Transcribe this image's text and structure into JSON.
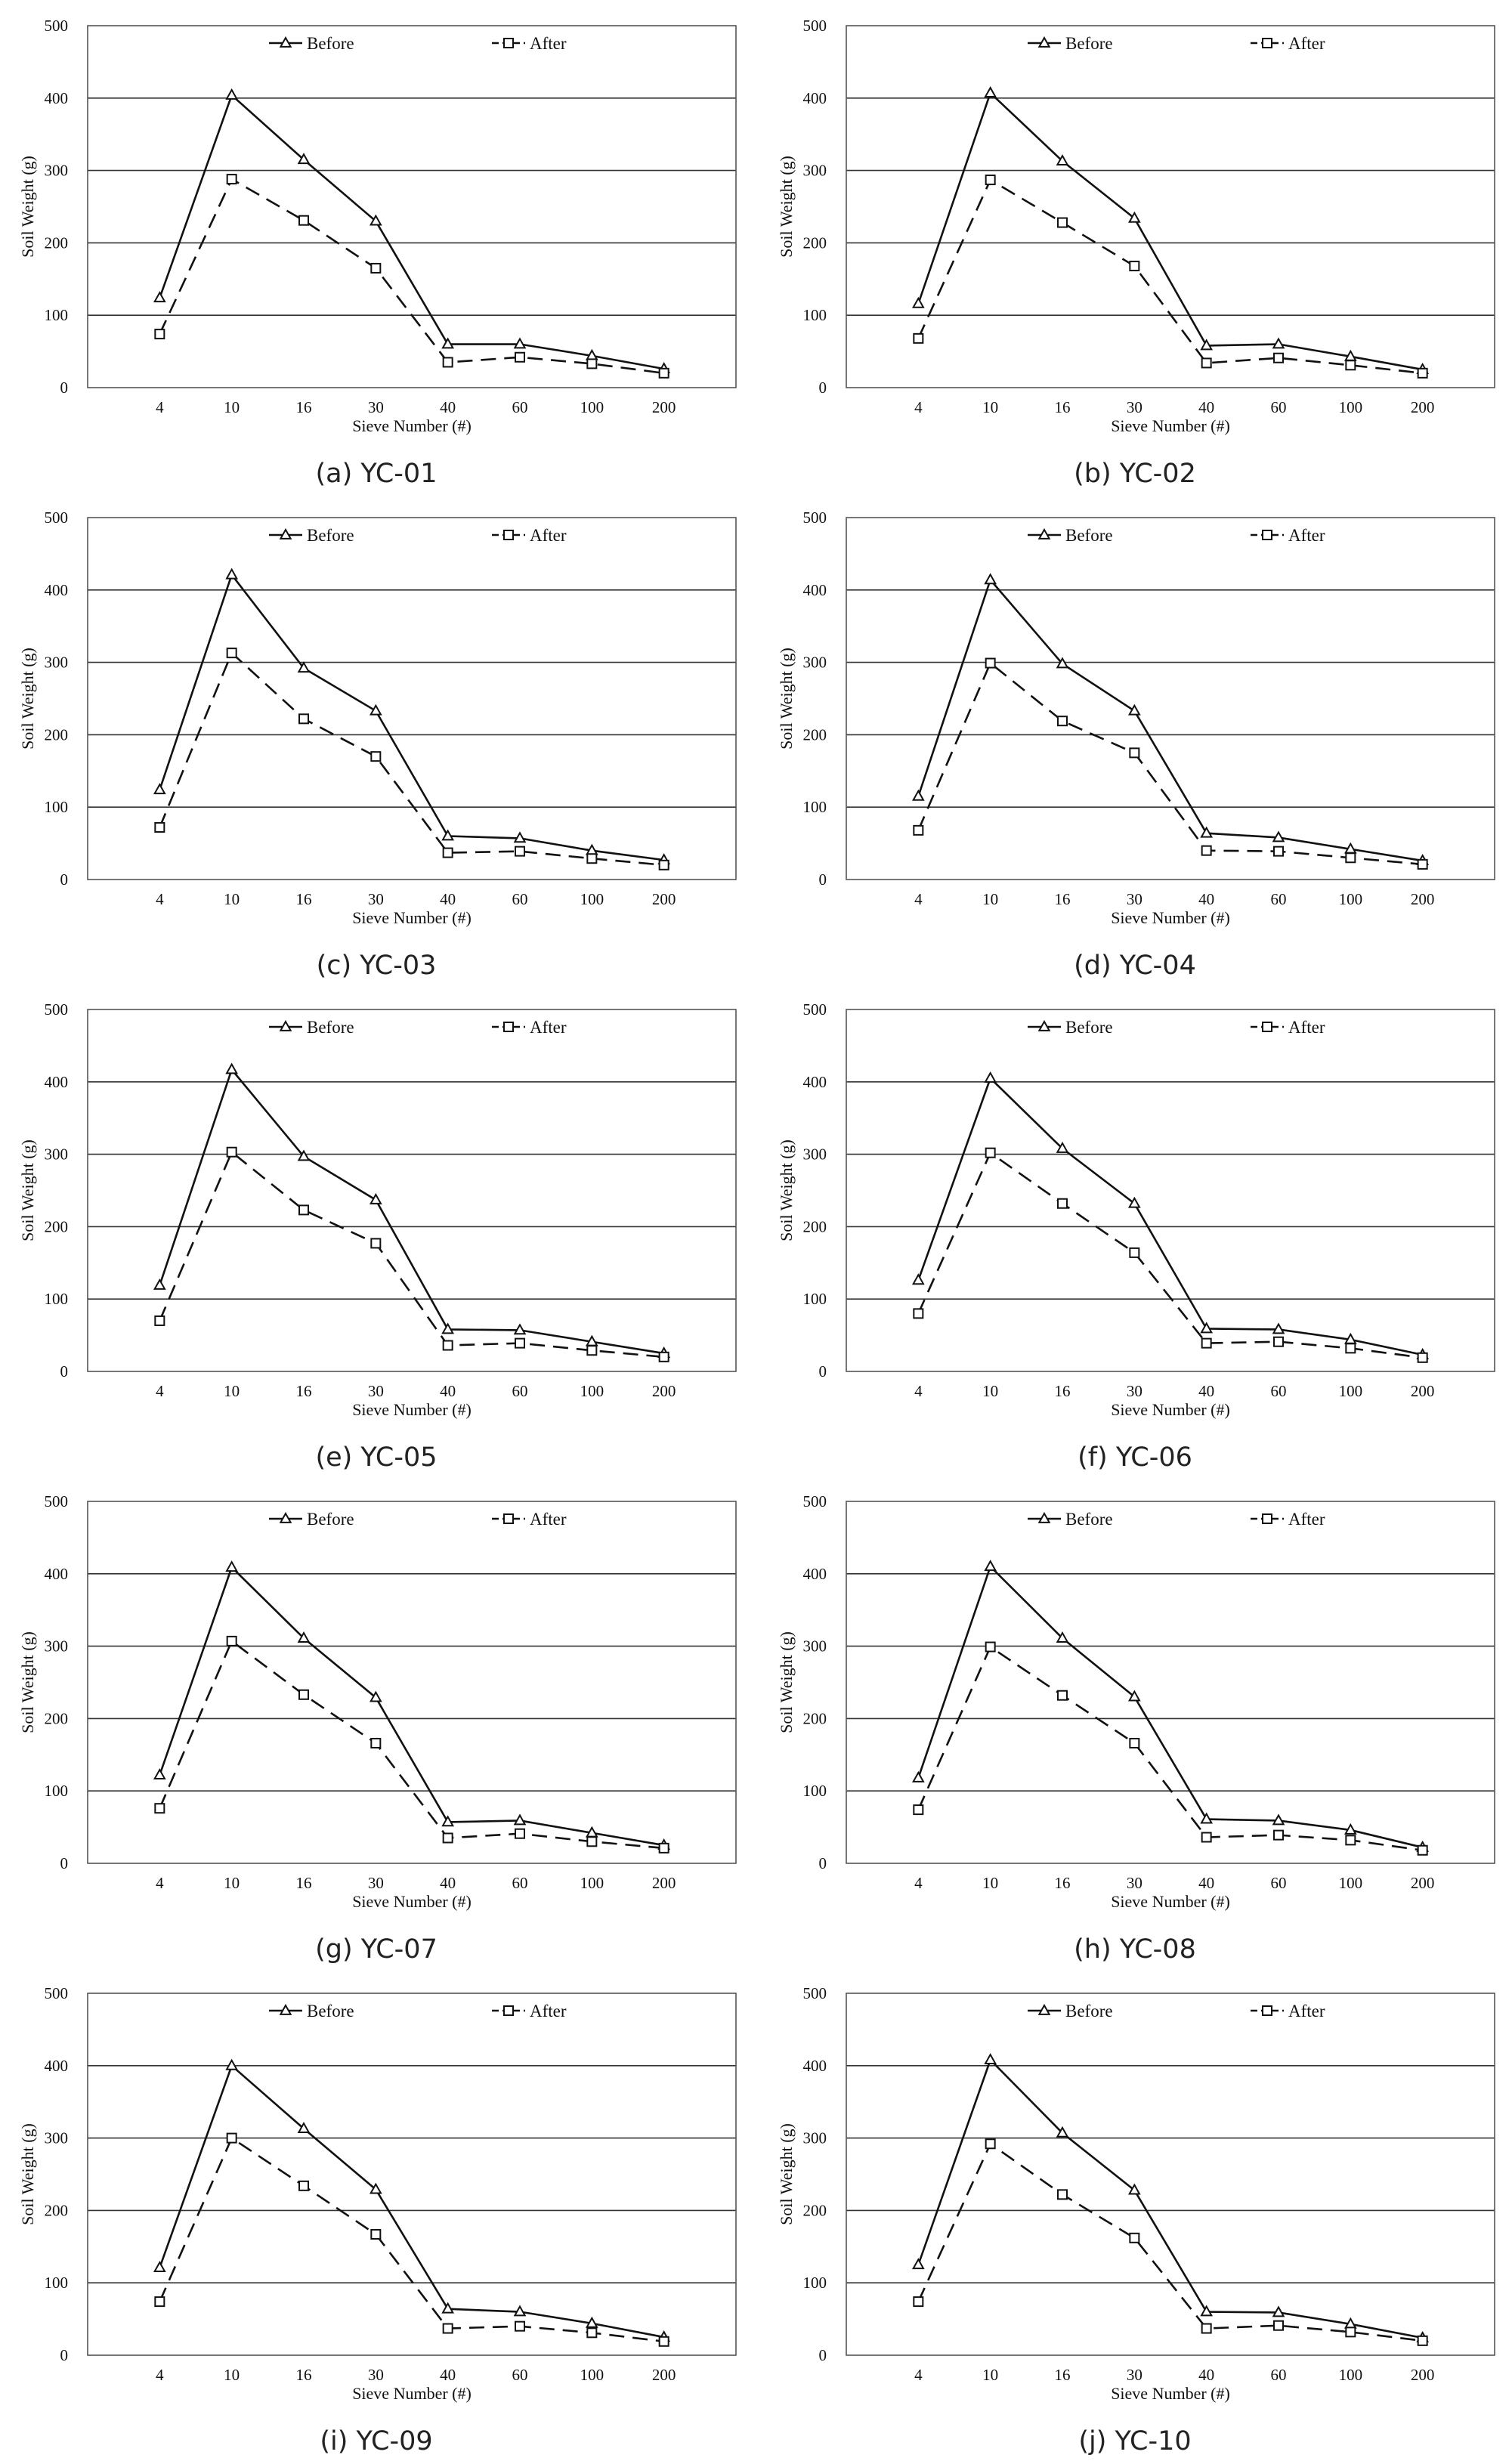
{
  "chart_data": [
    {
      "type": "line",
      "caption": "(a) YC-01",
      "categories": [
        "4",
        "10",
        "16",
        "30",
        "40",
        "60",
        "100",
        "200"
      ],
      "xlabel": "Sieve Number (#)",
      "ylabel": "Soil Weight (g)",
      "ylim": [
        0,
        500
      ],
      "yticks": [
        0,
        100,
        200,
        300,
        400,
        500
      ],
      "grid": true,
      "legend": "top",
      "series": [
        {
          "name": "Before",
          "marker": "triangle",
          "line": "solid",
          "values": [
            124,
            404,
            315,
            230,
            60,
            60,
            44,
            26
          ]
        },
        {
          "name": "After",
          "marker": "square",
          "line": "dashed",
          "values": [
            74,
            288,
            231,
            165,
            35,
            42,
            33,
            20
          ]
        }
      ]
    },
    {
      "type": "line",
      "caption": "(b) YC-02",
      "categories": [
        "4",
        "10",
        "16",
        "30",
        "40",
        "60",
        "100",
        "200"
      ],
      "xlabel": "Sieve Number (#)",
      "ylabel": "Soil Weight (g)",
      "ylim": [
        0,
        500
      ],
      "yticks": [
        0,
        100,
        200,
        300,
        400,
        500
      ],
      "grid": true,
      "legend": "top",
      "series": [
        {
          "name": "Before",
          "marker": "triangle",
          "line": "solid",
          "values": [
            116,
            407,
            313,
            234,
            58,
            60,
            43,
            25
          ]
        },
        {
          "name": "After",
          "marker": "square",
          "line": "dashed",
          "values": [
            68,
            287,
            228,
            168,
            34,
            41,
            31,
            20
          ]
        }
      ]
    },
    {
      "type": "line",
      "caption": "(c) YC-03",
      "categories": [
        "4",
        "10",
        "16",
        "30",
        "40",
        "60",
        "100",
        "200"
      ],
      "xlabel": "Sieve Number (#)",
      "ylabel": "Soil Weight (g)",
      "ylim": [
        0,
        500
      ],
      "yticks": [
        0,
        100,
        200,
        300,
        400,
        500
      ],
      "grid": true,
      "legend": "top",
      "series": [
        {
          "name": "Before",
          "marker": "triangle",
          "line": "solid",
          "values": [
            124,
            421,
            292,
            233,
            60,
            57,
            40,
            27
          ]
        },
        {
          "name": "After",
          "marker": "square",
          "line": "dashed",
          "values": [
            72,
            313,
            222,
            170,
            37,
            39,
            29,
            20
          ]
        }
      ]
    },
    {
      "type": "line",
      "caption": "(d) YC-04",
      "categories": [
        "4",
        "10",
        "16",
        "30",
        "40",
        "60",
        "100",
        "200"
      ],
      "xlabel": "Sieve Number (#)",
      "ylabel": "Soil Weight (g)",
      "ylim": [
        0,
        500
      ],
      "yticks": [
        0,
        100,
        200,
        300,
        400,
        500
      ],
      "grid": true,
      "legend": "top",
      "series": [
        {
          "name": "Before",
          "marker": "triangle",
          "line": "solid",
          "values": [
            115,
            414,
            298,
            233,
            64,
            58,
            42,
            26
          ]
        },
        {
          "name": "After",
          "marker": "square",
          "line": "dashed",
          "values": [
            68,
            299,
            219,
            175,
            40,
            39,
            30,
            21
          ]
        }
      ]
    },
    {
      "type": "line",
      "caption": "(e) YC-05",
      "categories": [
        "4",
        "10",
        "16",
        "30",
        "40",
        "60",
        "100",
        "200"
      ],
      "xlabel": "Sieve Number (#)",
      "ylabel": "Soil Weight (g)",
      "ylim": [
        0,
        500
      ],
      "yticks": [
        0,
        100,
        200,
        300,
        400,
        500
      ],
      "grid": true,
      "legend": "top",
      "series": [
        {
          "name": "Before",
          "marker": "triangle",
          "line": "solid",
          "values": [
            119,
            417,
            297,
            237,
            58,
            57,
            41,
            25
          ]
        },
        {
          "name": "After",
          "marker": "square",
          "line": "dashed",
          "values": [
            70,
            303,
            223,
            177,
            36,
            39,
            29,
            20
          ]
        }
      ]
    },
    {
      "type": "line",
      "caption": "(f) YC-06",
      "categories": [
        "4",
        "10",
        "16",
        "30",
        "40",
        "60",
        "100",
        "200"
      ],
      "xlabel": "Sieve Number (#)",
      "ylabel": "Soil Weight (g)",
      "ylim": [
        0,
        500
      ],
      "yticks": [
        0,
        100,
        200,
        300,
        400,
        500
      ],
      "grid": true,
      "legend": "top",
      "series": [
        {
          "name": "Before",
          "marker": "triangle",
          "line": "solid",
          "values": [
            126,
            405,
            308,
            232,
            59,
            58,
            44,
            23
          ]
        },
        {
          "name": "After",
          "marker": "square",
          "line": "dashed",
          "values": [
            80,
            302,
            232,
            164,
            39,
            41,
            32,
            19
          ]
        }
      ]
    },
    {
      "type": "line",
      "caption": "(g) YC-07",
      "categories": [
        "4",
        "10",
        "16",
        "30",
        "40",
        "60",
        "100",
        "200"
      ],
      "xlabel": "Sieve Number (#)",
      "ylabel": "Soil Weight (g)",
      "ylim": [
        0,
        500
      ],
      "yticks": [
        0,
        100,
        200,
        300,
        400,
        500
      ],
      "grid": true,
      "legend": "top",
      "series": [
        {
          "name": "Before",
          "marker": "triangle",
          "line": "solid",
          "values": [
            122,
            409,
            311,
            229,
            57,
            59,
            42,
            25
          ]
        },
        {
          "name": "After",
          "marker": "square",
          "line": "dashed",
          "values": [
            76,
            307,
            233,
            166,
            35,
            41,
            30,
            21
          ]
        }
      ]
    },
    {
      "type": "line",
      "caption": "(h) YC-08",
      "categories": [
        "4",
        "10",
        "16",
        "30",
        "40",
        "60",
        "100",
        "200"
      ],
      "xlabel": "Sieve Number (#)",
      "ylabel": "Soil Weight (g)",
      "ylim": [
        0,
        500
      ],
      "yticks": [
        0,
        100,
        200,
        300,
        400,
        500
      ],
      "grid": true,
      "legend": "top",
      "series": [
        {
          "name": "Before",
          "marker": "triangle",
          "line": "solid",
          "values": [
            118,
            410,
            311,
            230,
            61,
            59,
            46,
            22
          ]
        },
        {
          "name": "After",
          "marker": "square",
          "line": "dashed",
          "values": [
            74,
            299,
            232,
            166,
            36,
            39,
            32,
            18
          ]
        }
      ]
    },
    {
      "type": "line",
      "caption": "(i) YC-09",
      "categories": [
        "4",
        "10",
        "16",
        "30",
        "40",
        "60",
        "100",
        "200"
      ],
      "xlabel": "Sieve Number (#)",
      "ylabel": "Soil Weight (g)",
      "ylim": [
        0,
        500
      ],
      "yticks": [
        0,
        100,
        200,
        300,
        400,
        500
      ],
      "grid": true,
      "legend": "top",
      "series": [
        {
          "name": "Before",
          "marker": "triangle",
          "line": "solid",
          "values": [
            121,
            400,
            313,
            229,
            64,
            60,
            44,
            25
          ]
        },
        {
          "name": "After",
          "marker": "square",
          "line": "dashed",
          "values": [
            74,
            300,
            234,
            167,
            37,
            40,
            31,
            19
          ]
        }
      ]
    },
    {
      "type": "line",
      "caption": "(j) YC-10",
      "categories": [
        "4",
        "10",
        "16",
        "30",
        "40",
        "60",
        "100",
        "200"
      ],
      "xlabel": "Sieve Number (#)",
      "ylabel": "Soil Weight (g)",
      "ylim": [
        0,
        500
      ],
      "yticks": [
        0,
        100,
        200,
        300,
        400,
        500
      ],
      "grid": true,
      "legend": "top",
      "series": [
        {
          "name": "Before",
          "marker": "triangle",
          "line": "solid",
          "values": [
            125,
            408,
            307,
            228,
            60,
            59,
            43,
            24
          ]
        },
        {
          "name": "After",
          "marker": "square",
          "line": "dashed",
          "values": [
            74,
            292,
            222,
            162,
            37,
            41,
            32,
            20
          ]
        }
      ]
    }
  ]
}
